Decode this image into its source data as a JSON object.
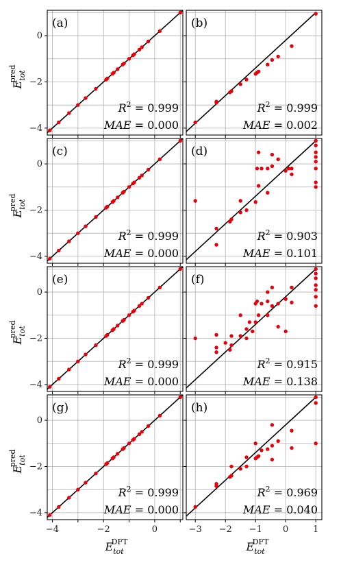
{
  "chart_data": [
    {
      "id": "a",
      "type": "scatter",
      "label": "(a)",
      "r2_text": "= 0.999",
      "mae_text": "= 0.000",
      "xlim": [
        -4.2,
        1.1
      ],
      "ylim": [
        -4.3,
        1.1
      ],
      "x_ticks": [],
      "y_ticks": [
        -4,
        -2,
        0
      ],
      "y_tick_labels": [
        "−4",
        "−2",
        "0"
      ],
      "points": [
        [
          -4.1,
          -4.1
        ],
        [
          -3.75,
          -3.75
        ],
        [
          -3.35,
          -3.35
        ],
        [
          -3.0,
          -3.0
        ],
        [
          -2.7,
          -2.7
        ],
        [
          -2.3,
          -2.3
        ],
        [
          -1.9,
          -1.9
        ],
        [
          -1.85,
          -1.85
        ],
        [
          -1.65,
          -1.65
        ],
        [
          -1.6,
          -1.6
        ],
        [
          -1.45,
          -1.45
        ],
        [
          -1.25,
          -1.25
        ],
        [
          -1.2,
          -1.2
        ],
        [
          -1.0,
          -1.0
        ],
        [
          -0.85,
          -0.85
        ],
        [
          -0.8,
          -0.8
        ],
        [
          -0.6,
          -0.6
        ],
        [
          -0.5,
          -0.5
        ],
        [
          -0.25,
          -0.25
        ],
        [
          0.2,
          0.2
        ],
        [
          1.0,
          1.0
        ]
      ]
    },
    {
      "id": "b",
      "type": "scatter",
      "label": "(b)",
      "r2_text": "= 0.999",
      "mae_text": "= 0.002",
      "xlim": [
        -3.3,
        1.2
      ],
      "ylim": [
        -4.3,
        1.1
      ],
      "x_ticks": [],
      "y_ticks": [],
      "points": [
        [
          -3.0,
          -3.75
        ],
        [
          -2.3,
          -2.9
        ],
        [
          -2.3,
          -2.85
        ],
        [
          -1.85,
          -2.45
        ],
        [
          -1.8,
          -2.4
        ],
        [
          -1.5,
          -2.1
        ],
        [
          -1.3,
          -1.9
        ],
        [
          -1.0,
          -1.65
        ],
        [
          -0.95,
          -1.6
        ],
        [
          -0.9,
          -1.55
        ],
        [
          -0.6,
          -1.25
        ],
        [
          -0.45,
          -1.05
        ],
        [
          -0.25,
          -0.9
        ],
        [
          0.2,
          -0.45
        ],
        [
          1.0,
          0.95
        ]
      ]
    },
    {
      "id": "c",
      "type": "scatter",
      "label": "(c)",
      "r2_text": "= 0.999",
      "mae_text": "= 0.000",
      "xlim": [
        -4.2,
        1.1
      ],
      "ylim": [
        -4.3,
        1.1
      ],
      "x_ticks": [],
      "y_ticks": [
        -4,
        -2,
        0
      ],
      "y_tick_labels": [
        "−4",
        "−2",
        "0"
      ],
      "points": [
        [
          -4.1,
          -4.1
        ],
        [
          -3.75,
          -3.75
        ],
        [
          -3.35,
          -3.35
        ],
        [
          -3.0,
          -3.0
        ],
        [
          -2.7,
          -2.7
        ],
        [
          -2.3,
          -2.3
        ],
        [
          -1.9,
          -1.9
        ],
        [
          -1.85,
          -1.85
        ],
        [
          -1.65,
          -1.65
        ],
        [
          -1.6,
          -1.6
        ],
        [
          -1.45,
          -1.45
        ],
        [
          -1.25,
          -1.25
        ],
        [
          -1.2,
          -1.2
        ],
        [
          -1.0,
          -1.0
        ],
        [
          -0.85,
          -0.85
        ],
        [
          -0.8,
          -0.8
        ],
        [
          -0.6,
          -0.6
        ],
        [
          -0.5,
          -0.5
        ],
        [
          -0.25,
          -0.25
        ],
        [
          0.2,
          0.2
        ],
        [
          1.0,
          1.0
        ]
      ]
    },
    {
      "id": "d",
      "type": "scatter",
      "label": "(d)",
      "r2_text": "= 0.903",
      "mae_text": "= 0.101",
      "xlim": [
        -3.3,
        1.2
      ],
      "ylim": [
        -4.3,
        1.1
      ],
      "x_ticks": [],
      "y_ticks": [],
      "points": [
        [
          -3.0,
          -1.6
        ],
        [
          -2.3,
          -2.8
        ],
        [
          -2.3,
          -3.5
        ],
        [
          -1.85,
          -2.5
        ],
        [
          -1.8,
          -2.4
        ],
        [
          -1.5,
          -1.6
        ],
        [
          -1.5,
          -2.1
        ],
        [
          -1.3,
          -2.0
        ],
        [
          -1.0,
          -1.65
        ],
        [
          -0.95,
          -0.2
        ],
        [
          -0.9,
          0.5
        ],
        [
          -0.8,
          -0.2
        ],
        [
          -0.6,
          -1.25
        ],
        [
          -0.45,
          -0.1
        ],
        [
          -0.45,
          0.4
        ],
        [
          -0.25,
          0.2
        ],
        [
          0.0,
          -0.3
        ],
        [
          0.1,
          -0.2
        ],
        [
          0.2,
          -0.45
        ],
        [
          0.2,
          -0.2
        ],
        [
          1.0,
          1.0
        ],
        [
          1.0,
          0.8
        ],
        [
          1.0,
          0.5
        ],
        [
          1.0,
          0.3
        ],
        [
          1.0,
          0.1
        ],
        [
          1.0,
          -0.2
        ],
        [
          1.0,
          -0.8
        ],
        [
          1.0,
          -1.0
        ],
        [
          -0.9,
          -0.95
        ],
        [
          -0.6,
          -0.2
        ]
      ]
    },
    {
      "id": "e",
      "type": "scatter",
      "label": "(e)",
      "r2_text": "= 0.999",
      "mae_text": "= 0.000",
      "xlim": [
        -4.2,
        1.1
      ],
      "ylim": [
        -4.3,
        1.1
      ],
      "x_ticks": [],
      "y_ticks": [
        -4,
        -2,
        0
      ],
      "y_tick_labels": [
        "−4",
        "−2",
        "0"
      ],
      "points": [
        [
          -4.1,
          -4.1
        ],
        [
          -3.75,
          -3.75
        ],
        [
          -3.35,
          -3.35
        ],
        [
          -3.0,
          -3.0
        ],
        [
          -2.7,
          -2.7
        ],
        [
          -2.3,
          -2.3
        ],
        [
          -1.9,
          -1.9
        ],
        [
          -1.85,
          -1.85
        ],
        [
          -1.65,
          -1.65
        ],
        [
          -1.6,
          -1.6
        ],
        [
          -1.45,
          -1.45
        ],
        [
          -1.25,
          -1.25
        ],
        [
          -1.2,
          -1.2
        ],
        [
          -1.0,
          -1.0
        ],
        [
          -0.85,
          -0.85
        ],
        [
          -0.8,
          -0.8
        ],
        [
          -0.6,
          -0.6
        ],
        [
          -0.5,
          -0.5
        ],
        [
          -0.25,
          -0.25
        ],
        [
          0.2,
          0.2
        ],
        [
          1.0,
          1.0
        ]
      ]
    },
    {
      "id": "f",
      "type": "scatter",
      "label": "(f)",
      "r2_text": "= 0.915",
      "mae_text": "= 0.138",
      "xlim": [
        -3.3,
        1.2
      ],
      "ylim": [
        -4.3,
        1.1
      ],
      "x_ticks": [],
      "y_ticks": [],
      "points": [
        [
          -3.0,
          -2.0
        ],
        [
          -2.3,
          -2.6
        ],
        [
          -2.3,
          -2.4
        ],
        [
          -2.3,
          -1.85
        ],
        [
          -1.85,
          -2.5
        ],
        [
          -1.8,
          -2.3
        ],
        [
          -1.8,
          -1.9
        ],
        [
          -1.5,
          -1.9
        ],
        [
          -1.3,
          -1.6
        ],
        [
          -1.2,
          -1.3
        ],
        [
          -1.1,
          -1.7
        ],
        [
          -1.0,
          -1.3
        ],
        [
          -0.95,
          -0.4
        ],
        [
          -0.9,
          -1.0
        ],
        [
          -0.8,
          -0.5
        ],
        [
          -0.6,
          -1.0
        ],
        [
          -0.6,
          -0.4
        ],
        [
          -0.45,
          -0.6
        ],
        [
          -0.45,
          0.2
        ],
        [
          -0.25,
          -0.5
        ],
        [
          -0.25,
          -1.5
        ],
        [
          0.0,
          -0.3
        ],
        [
          0.0,
          -1.7
        ],
        [
          0.2,
          0.2
        ],
        [
          0.2,
          -0.45
        ],
        [
          1.0,
          1.0
        ],
        [
          1.0,
          0.8
        ],
        [
          1.0,
          0.6
        ],
        [
          1.0,
          0.3
        ],
        [
          1.0,
          0.1
        ],
        [
          1.0,
          -0.2
        ],
        [
          1.0,
          -0.6
        ],
        [
          -1.5,
          -1.0
        ],
        [
          -1.0,
          -0.5
        ],
        [
          -2.0,
          -2.2
        ],
        [
          -0.6,
          0.0
        ],
        [
          -1.3,
          -2.0
        ]
      ]
    },
    {
      "id": "g",
      "type": "scatter",
      "label": "(g)",
      "r2_text": "= 0.999",
      "mae_text": "= 0.000",
      "xlim": [
        -4.2,
        1.1
      ],
      "ylim": [
        -4.3,
        1.1
      ],
      "x_ticks": [
        -4,
        -2,
        0
      ],
      "x_tick_labels": [
        "−4",
        "−2",
        "0"
      ],
      "y_ticks": [
        -4,
        -2,
        0
      ],
      "y_tick_labels": [
        "−4",
        "−2",
        "0"
      ],
      "points": [
        [
          -4.1,
          -4.1
        ],
        [
          -3.75,
          -3.75
        ],
        [
          -3.35,
          -3.35
        ],
        [
          -3.0,
          -3.0
        ],
        [
          -2.7,
          -2.7
        ],
        [
          -2.3,
          -2.3
        ],
        [
          -1.9,
          -1.9
        ],
        [
          -1.85,
          -1.85
        ],
        [
          -1.65,
          -1.65
        ],
        [
          -1.6,
          -1.6
        ],
        [
          -1.45,
          -1.45
        ],
        [
          -1.25,
          -1.25
        ],
        [
          -1.2,
          -1.2
        ],
        [
          -1.0,
          -1.0
        ],
        [
          -0.85,
          -0.85
        ],
        [
          -0.8,
          -0.8
        ],
        [
          -0.6,
          -0.6
        ],
        [
          -0.5,
          -0.5
        ],
        [
          -0.25,
          -0.25
        ],
        [
          0.2,
          0.2
        ],
        [
          1.0,
          1.0
        ]
      ]
    },
    {
      "id": "h",
      "type": "scatter",
      "label": "(h)",
      "r2_text": "= 0.969",
      "mae_text": "= 0.040",
      "xlim": [
        -3.3,
        1.2
      ],
      "ylim": [
        -4.3,
        1.1
      ],
      "x_ticks": [
        -3,
        -2,
        -1,
        0,
        1
      ],
      "x_tick_labels": [
        "−3",
        "−2",
        "−1",
        "0",
        "1"
      ],
      "y_ticks": [],
      "points": [
        [
          -3.0,
          -3.75
        ],
        [
          -2.3,
          -2.75
        ],
        [
          -2.3,
          -2.85
        ],
        [
          -1.85,
          -2.45
        ],
        [
          -1.8,
          -2.4
        ],
        [
          -1.8,
          -2.0
        ],
        [
          -1.5,
          -2.1
        ],
        [
          -1.3,
          -1.6
        ],
        [
          -1.0,
          -1.65
        ],
        [
          -0.95,
          -1.6
        ],
        [
          -0.9,
          -1.55
        ],
        [
          -0.8,
          -1.3
        ],
        [
          -0.6,
          -1.25
        ],
        [
          -0.45,
          -1.1
        ],
        [
          -0.45,
          -1.7
        ],
        [
          -0.45,
          -0.2
        ],
        [
          -0.25,
          -0.9
        ],
        [
          0.2,
          -0.45
        ],
        [
          0.2,
          -1.2
        ],
        [
          1.0,
          1.0
        ],
        [
          1.0,
          0.75
        ],
        [
          1.0,
          -1.0
        ],
        [
          -1.0,
          -1.0
        ],
        [
          -1.3,
          -2.0
        ]
      ]
    }
  ],
  "y_axis_title": {
    "main": "E",
    "sub": "tot",
    "sup": "pred"
  },
  "x_axis_title": {
    "main": "E",
    "sub": "tot",
    "sup": "DFT"
  },
  "colors": {
    "points": "#e8000b",
    "fit_line": "#000000",
    "grid": "#b0b0b0"
  }
}
